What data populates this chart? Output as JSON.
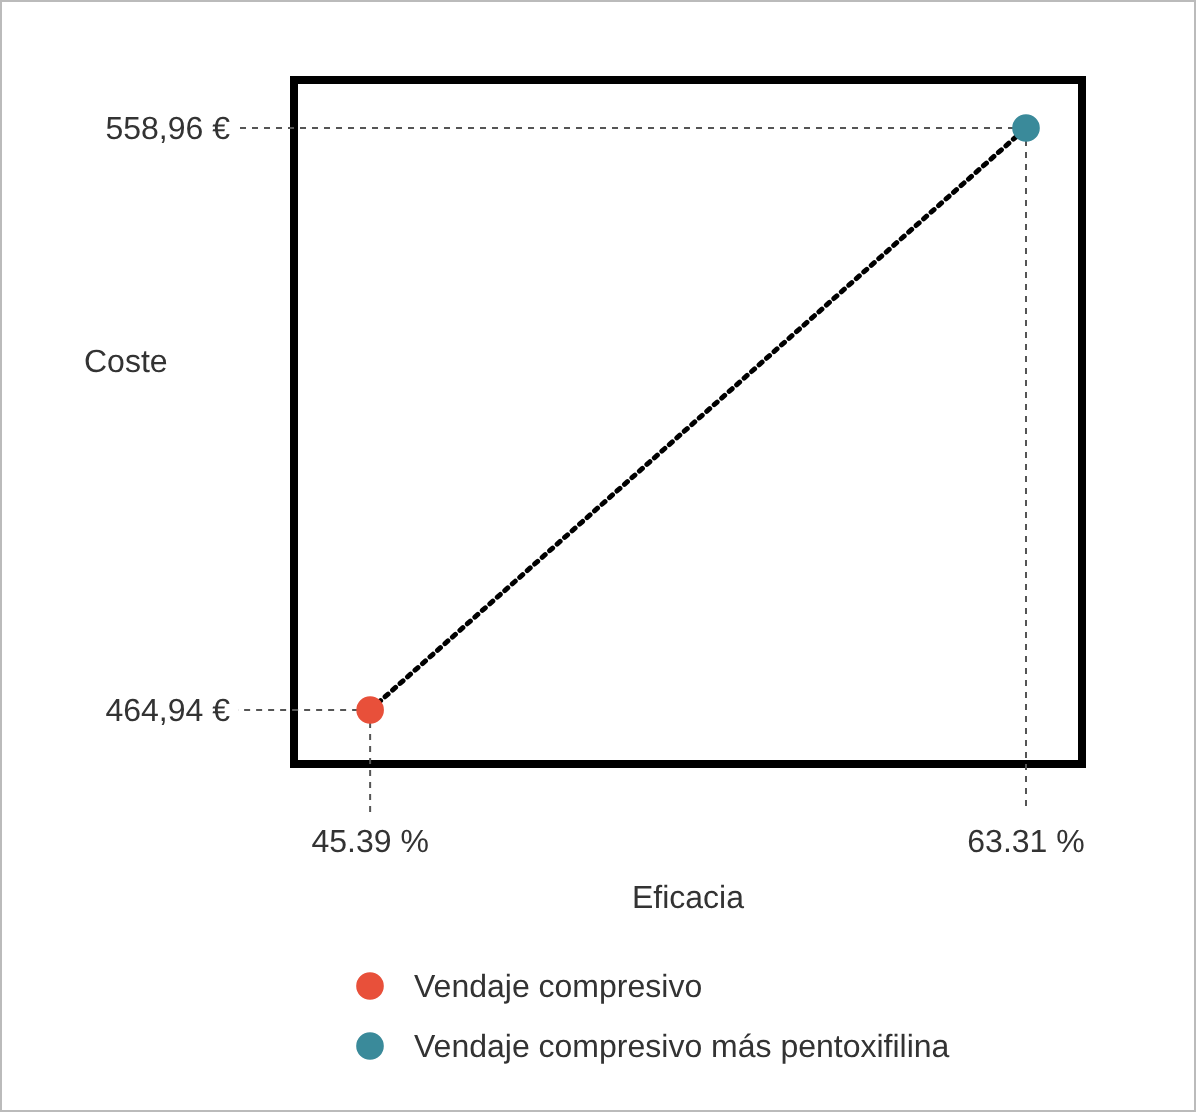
{
  "chart_data": {
    "type": "scatter",
    "xlabel": "Eficacia",
    "ylabel": "Coste",
    "xlim": [
      43.31,
      64.84
    ],
    "ylim": [
      456.22,
      566.71
    ],
    "xticks": [
      {
        "value": 45.39,
        "label": "45.39 %"
      },
      {
        "value": 63.31,
        "label": "63.31 %"
      }
    ],
    "yticks": [
      {
        "value": 464.94,
        "label": "464,94 €"
      },
      {
        "value": 558.96,
        "label": "558,96 €"
      }
    ],
    "x": [
      45.39,
      63.31
    ],
    "series": [
      {
        "type": "line",
        "values": [
          464.94,
          558.96
        ],
        "color": "#000000",
        "line_style": "dotted",
        "marker": "none"
      },
      {
        "name": "Vendaje compresivo",
        "color": "#e8503a",
        "values": [
          464.94,
          null
        ]
      },
      {
        "name": "Vendaje compresivo más pentoxifilina",
        "color": "#3a8a9a",
        "values": [
          null,
          558.96
        ]
      }
    ],
    "marker": "circle",
    "legend": "bottom"
  }
}
